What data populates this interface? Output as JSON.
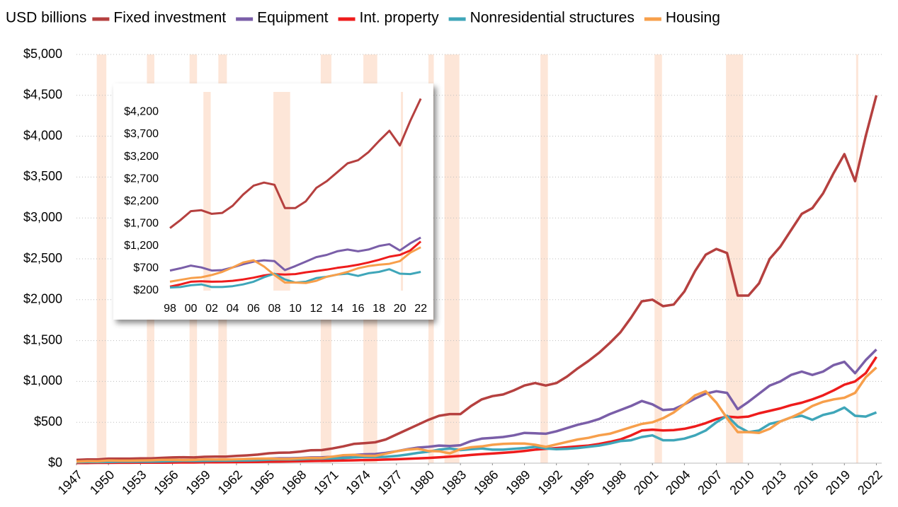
{
  "chart_data": [
    {
      "type": "line",
      "y_label": "USD billions",
      "x": [
        1947,
        1948,
        1949,
        1950,
        1951,
        1952,
        1953,
        1954,
        1955,
        1956,
        1957,
        1958,
        1959,
        1960,
        1961,
        1962,
        1963,
        1964,
        1965,
        1966,
        1967,
        1968,
        1969,
        1970,
        1971,
        1972,
        1973,
        1974,
        1975,
        1976,
        1977,
        1978,
        1979,
        1980,
        1981,
        1982,
        1983,
        1984,
        1985,
        1986,
        1987,
        1988,
        1989,
        1990,
        1991,
        1992,
        1993,
        1994,
        1995,
        1996,
        1997,
        1998,
        1999,
        2000,
        2001,
        2002,
        2003,
        2004,
        2005,
        2006,
        2007,
        2008,
        2009,
        2010,
        2011,
        2012,
        2013,
        2014,
        2015,
        2016,
        2017,
        2018,
        2019,
        2020,
        2021,
        2022
      ],
      "series": [
        {
          "name": "Fixed investment",
          "color": "#b5403f",
          "values": [
            40,
            45,
            45,
            55,
            55,
            55,
            58,
            58,
            65,
            70,
            73,
            70,
            78,
            80,
            80,
            88,
            95,
            105,
            120,
            128,
            130,
            142,
            158,
            160,
            180,
            205,
            235,
            245,
            255,
            290,
            350,
            410,
            470,
            530,
            580,
            600,
            600,
            700,
            780,
            820,
            840,
            890,
            950,
            980,
            950,
            980,
            1060,
            1160,
            1250,
            1350,
            1470,
            1600,
            1780,
            1980,
            2000,
            1920,
            1940,
            2100,
            2350,
            2550,
            2620,
            2570,
            2050,
            2050,
            2200,
            2500,
            2650,
            2850,
            3050,
            3120,
            3300,
            3550,
            3780,
            3450,
            4000,
            4500
          ]
        },
        {
          "name": "Equipment",
          "color": "#7a5ea8",
          "values": [
            20,
            21,
            21,
            24,
            25,
            26,
            27,
            27,
            30,
            32,
            34,
            32,
            35,
            37,
            37,
            40,
            44,
            48,
            55,
            60,
            60,
            64,
            70,
            72,
            78,
            88,
            100,
            108,
            112,
            125,
            145,
            170,
            190,
            200,
            215,
            210,
            220,
            270,
            300,
            310,
            320,
            340,
            370,
            365,
            360,
            390,
            430,
            470,
            500,
            540,
            600,
            650,
            700,
            760,
            720,
            650,
            660,
            720,
            790,
            850,
            880,
            860,
            660,
            750,
            850,
            950,
            1000,
            1080,
            1120,
            1080,
            1120,
            1200,
            1240,
            1100,
            1260,
            1390
          ]
        },
        {
          "name": "Int. property",
          "color": "#ee1c1c",
          "values": [
            3,
            3,
            4,
            4,
            5,
            5,
            6,
            6,
            7,
            8,
            9,
            9,
            10,
            11,
            12,
            13,
            14,
            16,
            18,
            20,
            22,
            24,
            26,
            28,
            30,
            32,
            35,
            38,
            40,
            44,
            48,
            53,
            58,
            64,
            72,
            80,
            88,
            100,
            110,
            118,
            126,
            136,
            150,
            165,
            175,
            185,
            195,
            205,
            215,
            235,
            260,
            290,
            340,
            400,
            410,
            400,
            405,
            420,
            450,
            490,
            540,
            570,
            560,
            570,
            610,
            640,
            670,
            710,
            740,
            780,
            830,
            890,
            960,
            1000,
            1100,
            1300
          ]
        },
        {
          "name": "Nonresidential structures",
          "color": "#3fa6b9",
          "values": [
            12,
            14,
            14,
            15,
            18,
            18,
            20,
            20,
            22,
            26,
            28,
            27,
            28,
            30,
            30,
            32,
            34,
            36,
            42,
            46,
            46,
            48,
            54,
            56,
            58,
            62,
            70,
            76,
            74,
            78,
            88,
            105,
            125,
            140,
            165,
            180,
            160,
            170,
            180,
            165,
            165,
            175,
            185,
            200,
            180,
            170,
            175,
            185,
            200,
            215,
            240,
            270,
            280,
            320,
            340,
            280,
            280,
            300,
            340,
            400,
            500,
            580,
            450,
            380,
            400,
            480,
            510,
            560,
            580,
            530,
            590,
            620,
            680,
            580,
            570,
            620
          ]
        },
        {
          "name": "Housing",
          "color": "#f79f4b",
          "values": [
            20,
            25,
            24,
            32,
            30,
            30,
            32,
            35,
            40,
            40,
            38,
            40,
            46,
            44,
            44,
            48,
            52,
            55,
            56,
            52,
            52,
            60,
            64,
            62,
            80,
            98,
            102,
            92,
            90,
            115,
            145,
            165,
            175,
            150,
            145,
            120,
            170,
            195,
            205,
            225,
            235,
            240,
            240,
            225,
            200,
            230,
            260,
            290,
            310,
            340,
            360,
            400,
            440,
            480,
            500,
            550,
            620,
            720,
            830,
            880,
            740,
            550,
            380,
            380,
            370,
            420,
            510,
            560,
            620,
            700,
            750,
            780,
            800,
            860,
            1050,
            1170
          ]
        }
      ],
      "recessions": [
        [
          1948.9,
          1949.8
        ],
        [
          1953.6,
          1954.3
        ],
        [
          1957.6,
          1958.3
        ],
        [
          1960.3,
          1961.1
        ],
        [
          1969.9,
          1970.9
        ],
        [
          1973.9,
          1975.2
        ],
        [
          1980.0,
          1980.5
        ],
        [
          1981.5,
          1982.9
        ],
        [
          1990.5,
          1991.2
        ],
        [
          2001.2,
          2001.9
        ],
        [
          2007.9,
          2009.5
        ],
        [
          2020.1,
          2020.3
        ]
      ],
      "recession_color": "#fde6d8",
      "xlim": [
        1947,
        2022.5
      ],
      "ylim": [
        0,
        5000
      ],
      "xticks": [
        1947,
        1950,
        1953,
        1956,
        1959,
        1962,
        1965,
        1968,
        1971,
        1974,
        1977,
        1980,
        1983,
        1986,
        1989,
        1992,
        1995,
        1998,
        2001,
        2004,
        2007,
        2010,
        2013,
        2016,
        2019,
        2022
      ],
      "yticks": [
        {
          "value": 0,
          "label": "$0"
        },
        {
          "value": 500,
          "label": "$500"
        },
        {
          "value": 1000,
          "label": "$1,000"
        },
        {
          "value": 1500,
          "label": "$1,500"
        },
        {
          "value": 2000,
          "label": "$2,000"
        },
        {
          "value": 2500,
          "label": "$2,500"
        },
        {
          "value": 3000,
          "label": "$3,000"
        },
        {
          "value": 3500,
          "label": "$3,500"
        },
        {
          "value": 4000,
          "label": "$4,000"
        },
        {
          "value": 4500,
          "label": "$4,500"
        },
        {
          "value": 5000,
          "label": "$5,000"
        }
      ],
      "grid": true
    },
    {
      "type": "line",
      "xlim": [
        1998,
        2022.4
      ],
      "ylim": [
        200,
        4650
      ],
      "xticks": [
        {
          "value": 1998,
          "label": "98"
        },
        {
          "value": 2000,
          "label": "00"
        },
        {
          "value": 2002,
          "label": "02"
        },
        {
          "value": 2004,
          "label": "04"
        },
        {
          "value": 2006,
          "label": "06"
        },
        {
          "value": 2008,
          "label": "08"
        },
        {
          "value": 2010,
          "label": "10"
        },
        {
          "value": 2012,
          "label": "12"
        },
        {
          "value": 2014,
          "label": "14"
        },
        {
          "value": 2016,
          "label": "16"
        },
        {
          "value": 2018,
          "label": "18"
        },
        {
          "value": 2020,
          "label": "20"
        },
        {
          "value": 2022,
          "label": "22"
        }
      ],
      "yticks": [
        {
          "value": 200,
          "label": "$200"
        },
        {
          "value": 700,
          "label": "$700"
        },
        {
          "value": 1200,
          "label": "$1,200"
        },
        {
          "value": 1700,
          "label": "$1,700"
        },
        {
          "value": 2200,
          "label": "$2,200"
        },
        {
          "value": 2700,
          "label": "$2,700"
        },
        {
          "value": 3200,
          "label": "$3,200"
        },
        {
          "value": 3700,
          "label": "$3,700"
        },
        {
          "value": 4200,
          "label": "$4,200"
        }
      ],
      "grid": false
    }
  ]
}
